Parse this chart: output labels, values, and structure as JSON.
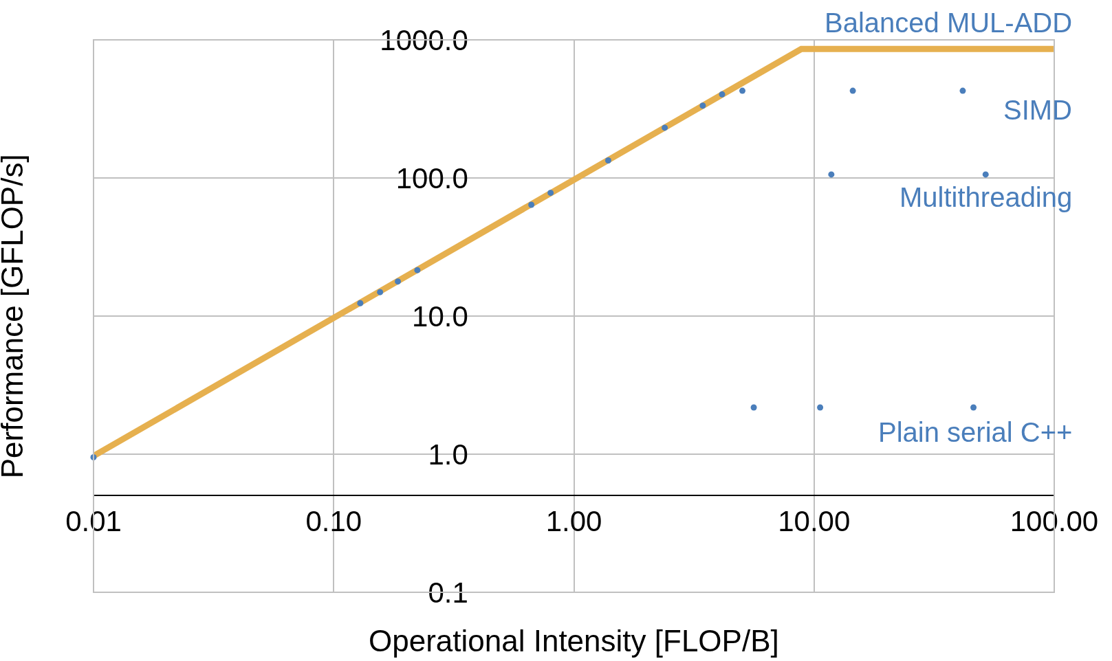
{
  "chart_data": {
    "type": "scatter",
    "xlabel": "Operational Intensity [FLOP/B]",
    "ylabel": "Performance [GFLOP/s]",
    "log": "xy",
    "xlim": [
      0.01,
      100
    ],
    "xticks": [
      {
        "value": 0.01,
        "label": "0.01"
      },
      {
        "value": 0.1,
        "label": "0.10"
      },
      {
        "value": 1,
        "label": "1.00"
      },
      {
        "value": 10,
        "label": "10.00"
      },
      {
        "value": 100,
        "label": "100.00"
      }
    ],
    "ylim": [
      0.1,
      1000
    ],
    "yticks": [
      0.1,
      {
        "value": 1,
        "label": "1.0"
      },
      {
        "value": 10,
        "label": "10.0"
      },
      {
        "value": 100,
        "label": "100.0"
      },
      {
        "value": 1000,
        "label": "1000.0"
      }
    ],
    "grid": true,
    "marker": "circle",
    "series": [
      {
        "type": "line",
        "marker": "none",
        "color": "#e6b04f",
        "x": [
          0.01,
          8.85,
          100
        ],
        "values": [
          0.97,
          858,
          858
        ]
      },
      {
        "type": "scatter",
        "color": "#4a7ebb",
        "x": [
          0.01,
          0.129,
          0.156,
          0.185,
          0.223,
          0.665,
          0.8,
          1.39,
          2.39,
          3.44,
          4.14,
          5.03,
          14.5,
          41.6,
          11.8,
          51.8,
          5.61,
          10.6,
          46.1
        ],
        "values": [
          0.95,
          12.4,
          14.9,
          17.8,
          21.5,
          64,
          78,
          134,
          231,
          334,
          403,
          428,
          428,
          428,
          106,
          106,
          2.18,
          2.18,
          2.18
        ]
      }
    ],
    "annotations": [
      "Balanced MUL-ADD",
      "SIMD",
      "Multithreading",
      "Plain serial C++"
    ]
  }
}
